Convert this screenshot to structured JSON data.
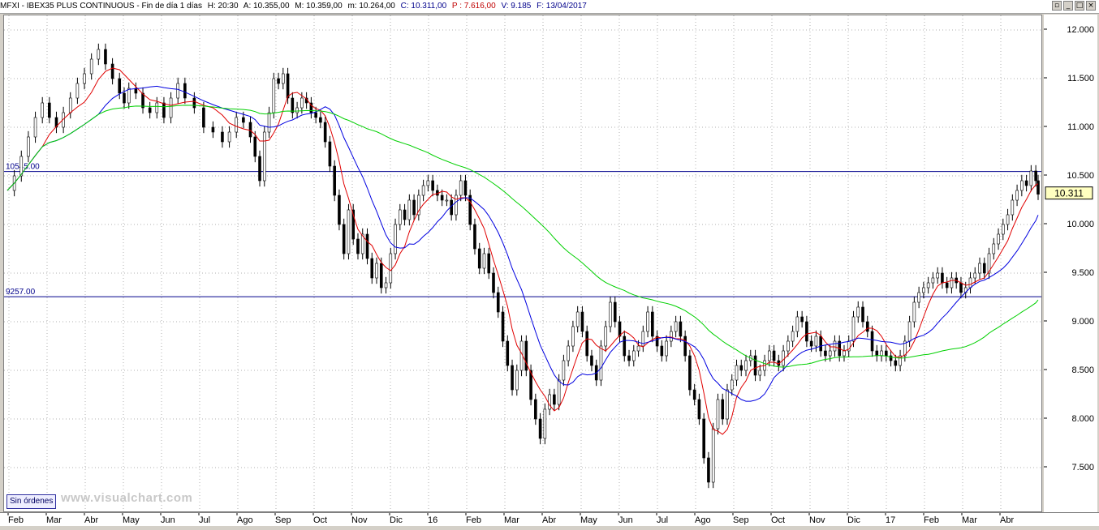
{
  "header": {
    "symbol": "MFXI - IBEX35 PLUS CONTINUOUS - Fin de día 1 días",
    "hour": "H: 20:30",
    "open": "A: 10.355,00",
    "max": "M: 10.359,00",
    "min": "m: 10.264,00",
    "close": "C: 10.311,00",
    "p": "P : 7.616,00",
    "vol": "V: 9.185",
    "date": "F: 13/04/2017"
  },
  "window_buttons": [
    "▫",
    "_",
    "□",
    "×"
  ],
  "footer": {
    "orders_button": "Sin órdenes",
    "watermark": "www.visualchart.com"
  },
  "chart_data": {
    "type": "line",
    "x": [
      "Feb",
      "Mar",
      "Abr",
      "May",
      "Jun",
      "Jul",
      "Ago",
      "Sep",
      "Oct",
      "Nov",
      "Dic",
      "16",
      "Feb",
      "Mar",
      "Abr",
      "May",
      "Jun",
      "Jul",
      "Ago",
      "Sep",
      "Oct",
      "Nov",
      "Dic",
      "17",
      "Feb",
      "Mar",
      "Abr"
    ],
    "ylim": [
      7050,
      12150
    ],
    "yticks": [
      "12.000",
      "11.500",
      "11.000",
      "10.500",
      "10.000",
      "9.500",
      "9.000",
      "8.500",
      "8.000",
      "7.500"
    ],
    "ytick_values": [
      12000,
      11500,
      11000,
      10500,
      10000,
      9500,
      9000,
      8500,
      8000,
      7500
    ],
    "last_price_label": "10.311",
    "last_price": 10311,
    "hlines": [
      {
        "label": "10545.00",
        "value": 10545
      },
      {
        "label": "9257.00",
        "value": 9257
      }
    ],
    "price_series": [
      [
        0,
        10350
      ],
      [
        3,
        10500
      ],
      [
        6,
        10700
      ],
      [
        9,
        10900
      ],
      [
        12,
        11100
      ],
      [
        15,
        11250
      ],
      [
        18,
        11100
      ],
      [
        21,
        11000
      ],
      [
        24,
        11150
      ],
      [
        27,
        11300
      ],
      [
        30,
        11450
      ],
      [
        33,
        11550
      ],
      [
        36,
        11700
      ],
      [
        39,
        11800
      ],
      [
        42,
        11650
      ],
      [
        45,
        11500
      ],
      [
        48,
        11350
      ],
      [
        50,
        11250
      ],
      [
        52,
        11400
      ],
      [
        55,
        11350
      ],
      [
        58,
        11200
      ],
      [
        61,
        11150
      ],
      [
        64,
        11250
      ],
      [
        67,
        11100
      ],
      [
        70,
        11300
      ],
      [
        73,
        11450
      ],
      [
        76,
        11300
      ],
      [
        80,
        11200
      ],
      [
        84,
        11000
      ],
      [
        88,
        10950
      ],
      [
        92,
        10850
      ],
      [
        95,
        10950
      ],
      [
        98,
        11100
      ],
      [
        101,
        11050
      ],
      [
        104,
        10900
      ],
      [
        106,
        10700
      ],
      [
        108,
        10450
      ],
      [
        110,
        10950
      ],
      [
        112,
        11150
      ],
      [
        114,
        11500
      ],
      [
        116,
        11450
      ],
      [
        118,
        11550
      ],
      [
        120,
        11300
      ],
      [
        122,
        11150
      ],
      [
        124,
        11200
      ],
      [
        126,
        11300
      ],
      [
        128,
        11250
      ],
      [
        130,
        11150
      ],
      [
        132,
        11100
      ],
      [
        134,
        11050
      ],
      [
        136,
        10850
      ],
      [
        138,
        10600
      ],
      [
        140,
        10300
      ],
      [
        142,
        10000
      ],
      [
        144,
        9700
      ],
      [
        146,
        10150
      ],
      [
        148,
        9850
      ],
      [
        150,
        9700
      ],
      [
        152,
        9900
      ],
      [
        154,
        9650
      ],
      [
        156,
        9450
      ],
      [
        158,
        9600
      ],
      [
        160,
        9350
      ],
      [
        162,
        9400
      ],
      [
        164,
        9700
      ],
      [
        166,
        10000
      ],
      [
        168,
        10150
      ],
      [
        170,
        10050
      ],
      [
        172,
        10250
      ],
      [
        174,
        10100
      ],
      [
        176,
        10300
      ],
      [
        178,
        10400
      ],
      [
        180,
        10450
      ],
      [
        182,
        10350
      ],
      [
        184,
        10300
      ],
      [
        186,
        10250
      ],
      [
        188,
        10250
      ],
      [
        190,
        10100
      ],
      [
        192,
        10300
      ],
      [
        194,
        10450
      ],
      [
        196,
        10300
      ],
      [
        198,
        10000
      ],
      [
        200,
        9750
      ],
      [
        202,
        9550
      ],
      [
        204,
        9700
      ],
      [
        206,
        9500
      ],
      [
        208,
        9300
      ],
      [
        210,
        9100
      ],
      [
        212,
        8800
      ],
      [
        214,
        8550
      ],
      [
        216,
        8300
      ],
      [
        218,
        8500
      ],
      [
        220,
        8800
      ],
      [
        222,
        8500
      ],
      [
        224,
        8200
      ],
      [
        226,
        8000
      ],
      [
        228,
        7800
      ],
      [
        230,
        8100
      ],
      [
        232,
        8250
      ],
      [
        234,
        8150
      ],
      [
        236,
        8400
      ],
      [
        238,
        8600
      ],
      [
        240,
        8750
      ],
      [
        242,
        8950
      ],
      [
        244,
        9100
      ],
      [
        246,
        8900
      ],
      [
        248,
        8650
      ],
      [
        250,
        8550
      ],
      [
        252,
        8400
      ],
      [
        254,
        8750
      ],
      [
        256,
        8950
      ],
      [
        258,
        9200
      ],
      [
        260,
        9000
      ],
      [
        262,
        8850
      ],
      [
        264,
        8650
      ],
      [
        266,
        8600
      ],
      [
        268,
        8700
      ],
      [
        270,
        8750
      ],
      [
        272,
        8900
      ],
      [
        274,
        9100
      ],
      [
        276,
        8850
      ],
      [
        278,
        8750
      ],
      [
        280,
        8650
      ],
      [
        282,
        8800
      ],
      [
        284,
        8900
      ],
      [
        286,
        9000
      ],
      [
        288,
        8850
      ],
      [
        290,
        8650
      ],
      [
        292,
        8300
      ],
      [
        294,
        8200
      ],
      [
        296,
        8000
      ],
      [
        298,
        7600
      ],
      [
        300,
        7350
      ],
      [
        302,
        7900
      ],
      [
        304,
        8200
      ],
      [
        306,
        8000
      ],
      [
        308,
        8300
      ],
      [
        310,
        8400
      ],
      [
        312,
        8550
      ],
      [
        314,
        8500
      ],
      [
        316,
        8600
      ],
      [
        318,
        8650
      ],
      [
        320,
        8450
      ],
      [
        322,
        8500
      ],
      [
        324,
        8600
      ],
      [
        326,
        8700
      ],
      [
        328,
        8600
      ],
      [
        330,
        8550
      ],
      [
        332,
        8700
      ],
      [
        334,
        8800
      ],
      [
        336,
        8900
      ],
      [
        338,
        9050
      ],
      [
        340,
        9000
      ],
      [
        342,
        8800
      ],
      [
        344,
        8750
      ],
      [
        346,
        8850
      ],
      [
        348,
        8700
      ],
      [
        350,
        8650
      ],
      [
        352,
        8700
      ],
      [
        354,
        8800
      ],
      [
        356,
        8650
      ],
      [
        358,
        8700
      ],
      [
        360,
        8800
      ],
      [
        362,
        9050
      ],
      [
        364,
        9150
      ],
      [
        366,
        9000
      ],
      [
        368,
        8900
      ],
      [
        370,
        8700
      ],
      [
        372,
        8650
      ],
      [
        374,
        8700
      ],
      [
        376,
        8650
      ],
      [
        378,
        8600
      ],
      [
        380,
        8550
      ],
      [
        382,
        8650
      ],
      [
        384,
        8800
      ],
      [
        386,
        9000
      ],
      [
        388,
        9200
      ],
      [
        390,
        9300
      ],
      [
        392,
        9350
      ],
      [
        394,
        9400
      ],
      [
        396,
        9450
      ],
      [
        398,
        9500
      ],
      [
        400,
        9400
      ],
      [
        402,
        9350
      ],
      [
        404,
        9450
      ],
      [
        406,
        9400
      ],
      [
        408,
        9300
      ],
      [
        410,
        9350
      ],
      [
        412,
        9450
      ],
      [
        414,
        9500
      ],
      [
        416,
        9600
      ],
      [
        418,
        9500
      ],
      [
        420,
        9700
      ],
      [
        422,
        9800
      ],
      [
        424,
        9900
      ],
      [
        426,
        10000
      ],
      [
        428,
        10100
      ],
      [
        430,
        10250
      ],
      [
        432,
        10350
      ],
      [
        434,
        10450
      ],
      [
        436,
        10400
      ],
      [
        438,
        10550
      ],
      [
        440,
        10450
      ],
      [
        441,
        10311
      ]
    ],
    "series": [
      {
        "name": "price",
        "color": "#000000"
      },
      {
        "color": "#e00000"
      },
      {
        "color": "#0000e0"
      },
      {
        "color": "#00d000"
      }
    ],
    "grid": true
  }
}
